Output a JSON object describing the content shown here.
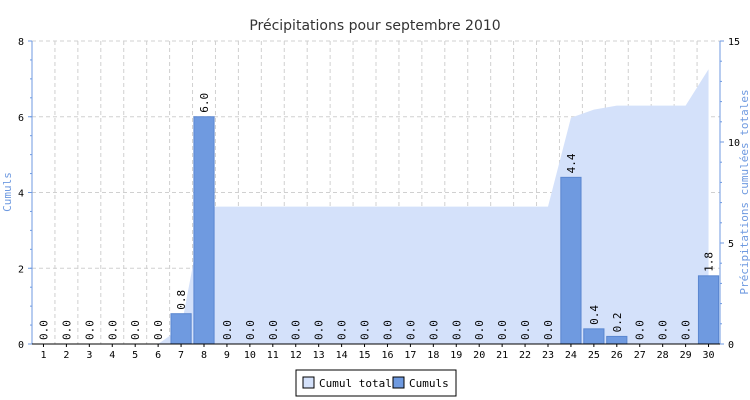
{
  "chart_data": {
    "type": "bar",
    "title": "Précipitations pour septembre 2010",
    "categories": [
      "1",
      "2",
      "3",
      "4",
      "5",
      "6",
      "7",
      "8",
      "9",
      "10",
      "11",
      "12",
      "13",
      "14",
      "15",
      "16",
      "17",
      "18",
      "19",
      "20",
      "21",
      "22",
      "23",
      "24",
      "25",
      "26",
      "27",
      "28",
      "29",
      "30"
    ],
    "series": [
      {
        "name": "Cumuls",
        "type": "bar",
        "axis": "left",
        "color": "#6f9ae0",
        "values": [
          0,
          0,
          0,
          0,
          0,
          0,
          0.8,
          6.0,
          0,
          0,
          0,
          0,
          0,
          0,
          0,
          0,
          0,
          0,
          0,
          0,
          0,
          0,
          0,
          4.4,
          0.4,
          0.2,
          0,
          0,
          0,
          1.8
        ],
        "labels": [
          "0.0",
          "0.0",
          "0.0",
          "0.0",
          "0.0",
          "0.0",
          "0.8",
          "6.0",
          "0.0",
          "0.0",
          "0.0",
          "0.0",
          "0.0",
          "0.0",
          "0.0",
          "0.0",
          "0.0",
          "0.0",
          "0.0",
          "0.0",
          "0.0",
          "0.0",
          "0.0",
          "4.4",
          "0.4",
          "0.2",
          "0.0",
          "0.0",
          "0.0",
          "1.8"
        ]
      },
      {
        "name": "Cumul total",
        "type": "area",
        "axis": "right",
        "color": "#d4e1fa",
        "values": [
          0,
          0,
          0,
          0,
          0,
          0,
          0.8,
          6.8,
          6.8,
          6.8,
          6.8,
          6.8,
          6.8,
          6.8,
          6.8,
          6.8,
          6.8,
          6.8,
          6.8,
          6.8,
          6.8,
          6.8,
          6.8,
          11.2,
          11.6,
          11.8,
          11.8,
          11.8,
          11.8,
          13.6
        ]
      }
    ],
    "ylabel": "Cumuls",
    "y2label": "Précipitations cumulées totales",
    "ylim": [
      0,
      8
    ],
    "yticks": [
      "0",
      "2",
      "4",
      "6",
      "8"
    ],
    "y2lim": [
      0,
      15
    ],
    "y2ticks": [
      "0",
      "5",
      "10",
      "15"
    ],
    "grid": true,
    "legend": "bottom-center",
    "left_axis_color": "#6f9ae0",
    "right_axis_color": "#6f9ae0"
  }
}
